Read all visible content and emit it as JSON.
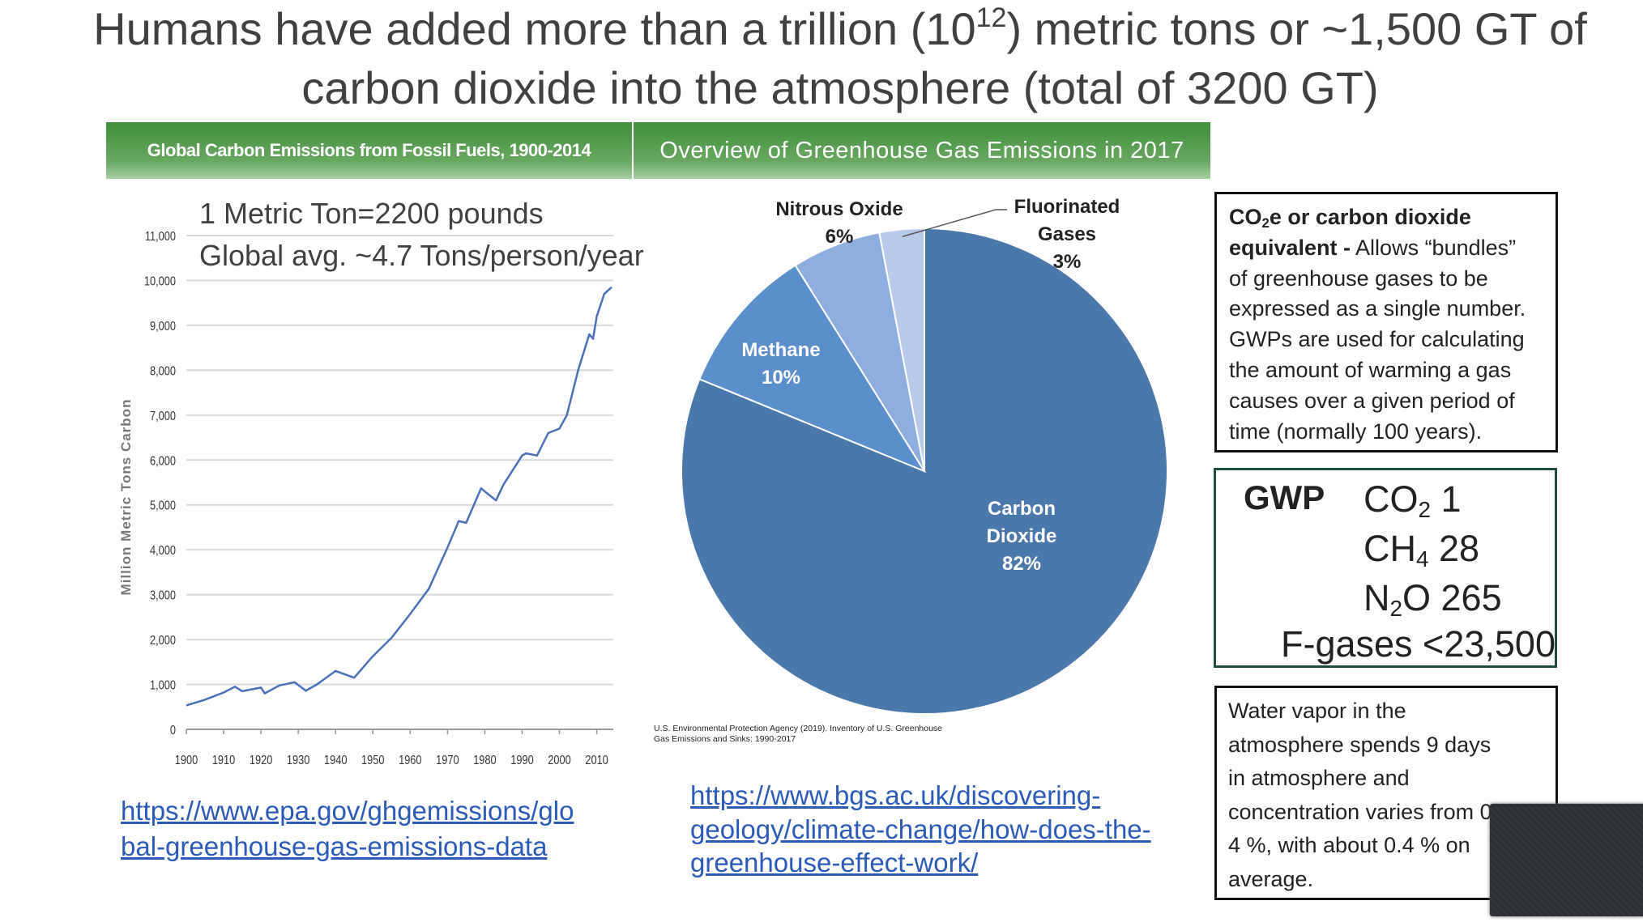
{
  "title": {
    "line1_before": "Humans have added more than a trillion (10",
    "line1_sup": "12",
    "line1_after": ") metric tons or ~1,500 GT of",
    "line2": "carbon dioxide into the atmosphere (total of 3200 GT)"
  },
  "chart_data": [
    {
      "type": "line",
      "title": "Global Carbon Emissions from Fossil Fuels, 1900-2014",
      "y_label": "Million Metric Tons Carbon",
      "annotations": [
        "1 Metric Ton=2200 pounds",
        "Global avg. ~4.7 Tons/person/year"
      ],
      "x": [
        1900,
        1905,
        1910,
        1913,
        1915,
        1920,
        1921,
        1925,
        1929,
        1932,
        1935,
        1940,
        1945,
        1950,
        1955,
        1960,
        1965,
        1970,
        1973,
        1975,
        1979,
        1980,
        1983,
        1985,
        1990,
        1991,
        1994,
        1997,
        2000,
        2002,
        2005,
        2008,
        2009,
        2010,
        2012,
        2014
      ],
      "values": [
        534,
        660,
        820,
        950,
        850,
        930,
        800,
        980,
        1050,
        860,
        1000,
        1300,
        1150,
        1630,
        2040,
        2570,
        3130,
        4050,
        4640,
        4600,
        5370,
        5300,
        5100,
        5450,
        6100,
        6150,
        6100,
        6600,
        6700,
        7000,
        8000,
        8800,
        8700,
        9200,
        9700,
        9850
      ],
      "color": "#4a70b8",
      "grid": true,
      "xlim": [
        1900,
        2014
      ],
      "xticks": [
        1900,
        1910,
        1920,
        1930,
        1940,
        1950,
        1960,
        1970,
        1980,
        1990,
        2000,
        2010
      ],
      "ylim": [
        0,
        11000
      ],
      "yticks": [
        0,
        {
          "value": 1000,
          "label": "1,000"
        },
        {
          "value": 2000,
          "label": "2,000"
        },
        {
          "value": 3000,
          "label": "3,000"
        },
        {
          "value": 4000,
          "label": "4,000"
        },
        {
          "value": 5000,
          "label": "5,000"
        },
        {
          "value": 6000,
          "label": "6,000"
        },
        {
          "value": 7000,
          "label": "7,000"
        },
        {
          "value": 8000,
          "label": "8,000"
        },
        {
          "value": 9000,
          "label": "9,000"
        },
        {
          "value": 10000,
          "label": "10,000"
        },
        {
          "value": 11000,
          "label": "11,000"
        }
      ],
      "link_lines": [
        "https://www.epa.gov/ghgemissions/glo",
        "bal-greenhouse-gas-emissions-data"
      ]
    },
    {
      "type": "pie",
      "title": "Overview of Greenhouse Gas Emissions in 2017",
      "categories": [
        "Carbon Dioxide",
        "Methane",
        "Nitrous Oxide",
        "Fluorinated Gases"
      ],
      "values": [
        82,
        10,
        6,
        3
      ],
      "value_labels": [
        "82%",
        "10%",
        "6%",
        "3%"
      ],
      "colors": [
        "#4a78ab",
        "#5a8fcb",
        "#8dafdf",
        "#b9cbec"
      ],
      "source": "U.S. Environmental Protection Agency (2019). Inventory of U.S. Greenhouse Gas Emissions and Sinks: 1990-2017",
      "link_lines": [
        "https://www.bgs.ac.uk/discovering-",
        "geology/climate-change/how-does-the-",
        "greenhouse-effect-work/"
      ]
    }
  ],
  "co2e_box": {
    "term": "CO",
    "term_sub": "2",
    "term_rest": "e or carbon dioxide",
    "term_line2": "equivalent -",
    "text_line2": " Allows “bundles”",
    "lines": [
      "of greenhouse gases to be",
      "expressed as a single number.",
      "GWPs are used for calculating",
      "the amount of warming a gas",
      "causes over a given period of",
      "time (normally 100 years)."
    ]
  },
  "gwp_box": {
    "heading": "GWP",
    "rows": [
      [
        "CO",
        "2",
        " 1"
      ],
      [
        "CH",
        "4",
        " 28"
      ],
      [
        "N",
        "2",
        "O 265"
      ]
    ],
    "last_row": "F-gases <23,500"
  },
  "water_box": {
    "lines": [
      "Water vapor in the",
      "atmosphere spends 9 days",
      "in atmosphere and",
      "concentration varies from 0 to",
      "4 %, with about 0.4 % on",
      "average."
    ]
  }
}
